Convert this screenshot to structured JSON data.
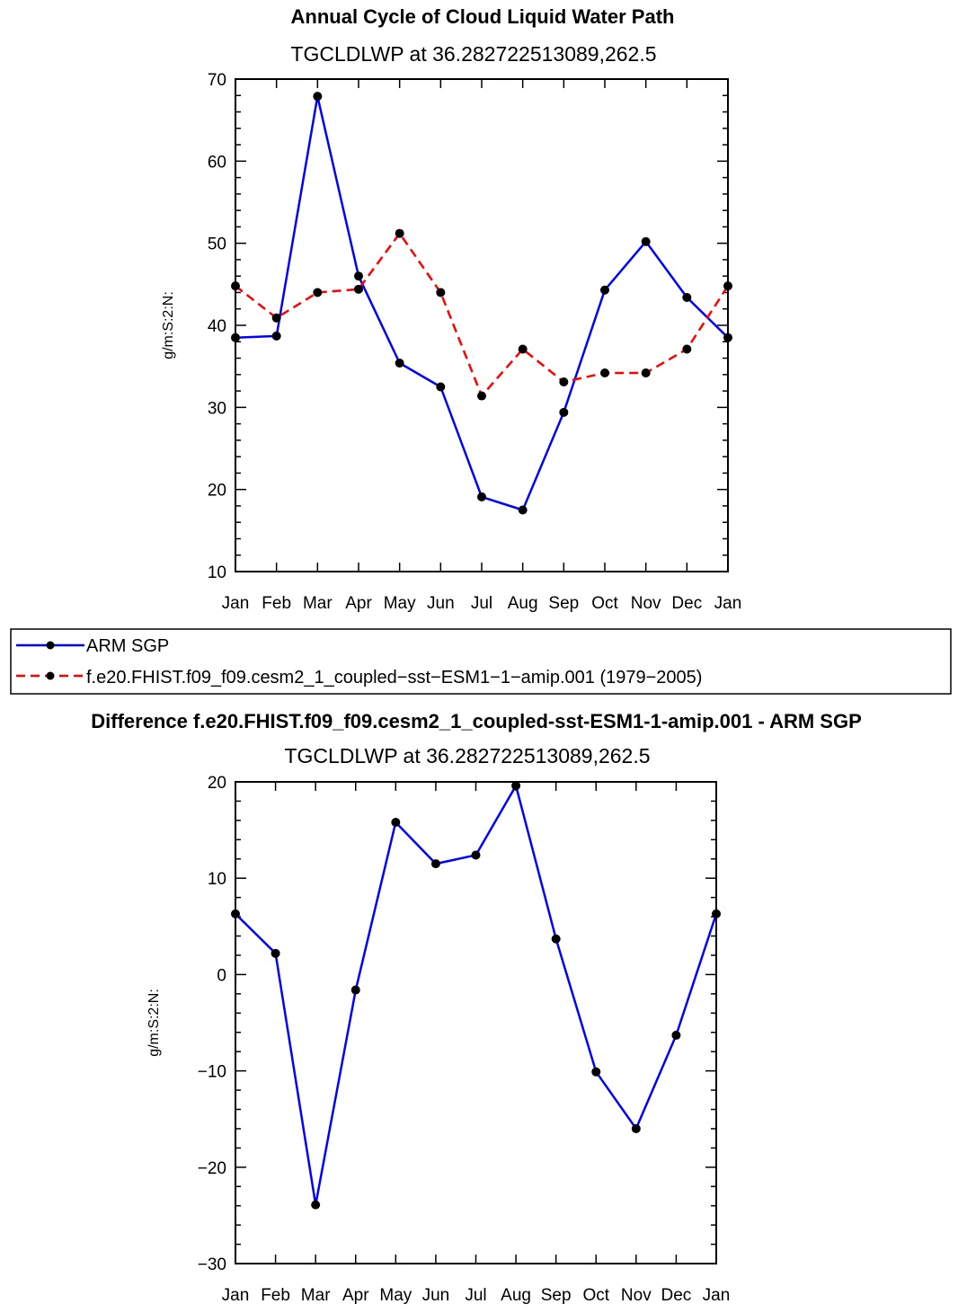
{
  "colors": {
    "obs": "#0000ff",
    "model": "#ff0000",
    "diff": "#0000ff",
    "marker": "#000000",
    "frame": "#000000"
  },
  "chart_data": [
    {
      "type": "line",
      "title": "Annual Cycle of Cloud Liquid Water Path",
      "subtitle": "TGCLDLWP  at  36.282722513089,262.5",
      "xlabel": "",
      "ylabel": "g/m:S:2:N:",
      "categories": [
        "Jan",
        "Feb",
        "Mar",
        "Apr",
        "May",
        "Jun",
        "Jul",
        "Aug",
        "Sep",
        "Oct",
        "Nov",
        "Dec",
        "Jan"
      ],
      "ylim": [
        10,
        70
      ],
      "yticks": [
        10,
        20,
        30,
        40,
        50,
        60,
        70
      ],
      "yticklabels": [
        "10",
        "20",
        "30",
        "40",
        "50",
        "60",
        "70"
      ],
      "series": [
        {
          "name": "ARM SGP",
          "style": "solid",
          "values": [
            38.5,
            38.7,
            67.9,
            46.0,
            35.4,
            32.5,
            19.1,
            17.5,
            29.4,
            44.3,
            50.2,
            43.4,
            38.5
          ]
        },
        {
          "name": "f.e20.FHIST.f09_f09.cesm2_1_coupled−sst−ESM1−1−amip.001 (1979−2005)",
          "style": "dashed",
          "values": [
            44.8,
            40.9,
            44.0,
            44.4,
            51.2,
            44.0,
            31.4,
            37.1,
            33.1,
            34.2,
            34.2,
            37.1,
            44.8
          ]
        }
      ]
    },
    {
      "type": "line",
      "title": "Difference f.e20.FHIST.f09_f09.cesm2_1_coupled-sst-ESM1-1-amip.001 - ARM SGP",
      "subtitle": "TGCLDLWP  at  36.282722513089,262.5",
      "xlabel": "",
      "ylabel": "g/m:S:2:N:",
      "categories": [
        "Jan",
        "Feb",
        "Mar",
        "Apr",
        "May",
        "Jun",
        "Jul",
        "Aug",
        "Sep",
        "Oct",
        "Nov",
        "Dec",
        "Jan"
      ],
      "ylim": [
        -30,
        20
      ],
      "yticks": [
        -30,
        -20,
        -10,
        0,
        10,
        20
      ],
      "yticklabels": [
        "−30",
        "−20",
        "−10",
        "0",
        "10",
        "20"
      ],
      "series": [
        {
          "name": "Difference",
          "style": "solid",
          "values": [
            6.3,
            2.2,
            -23.9,
            -1.6,
            15.8,
            11.5,
            12.4,
            19.6,
            3.7,
            -10.1,
            -16.0,
            -6.3,
            6.3
          ]
        }
      ]
    }
  ]
}
